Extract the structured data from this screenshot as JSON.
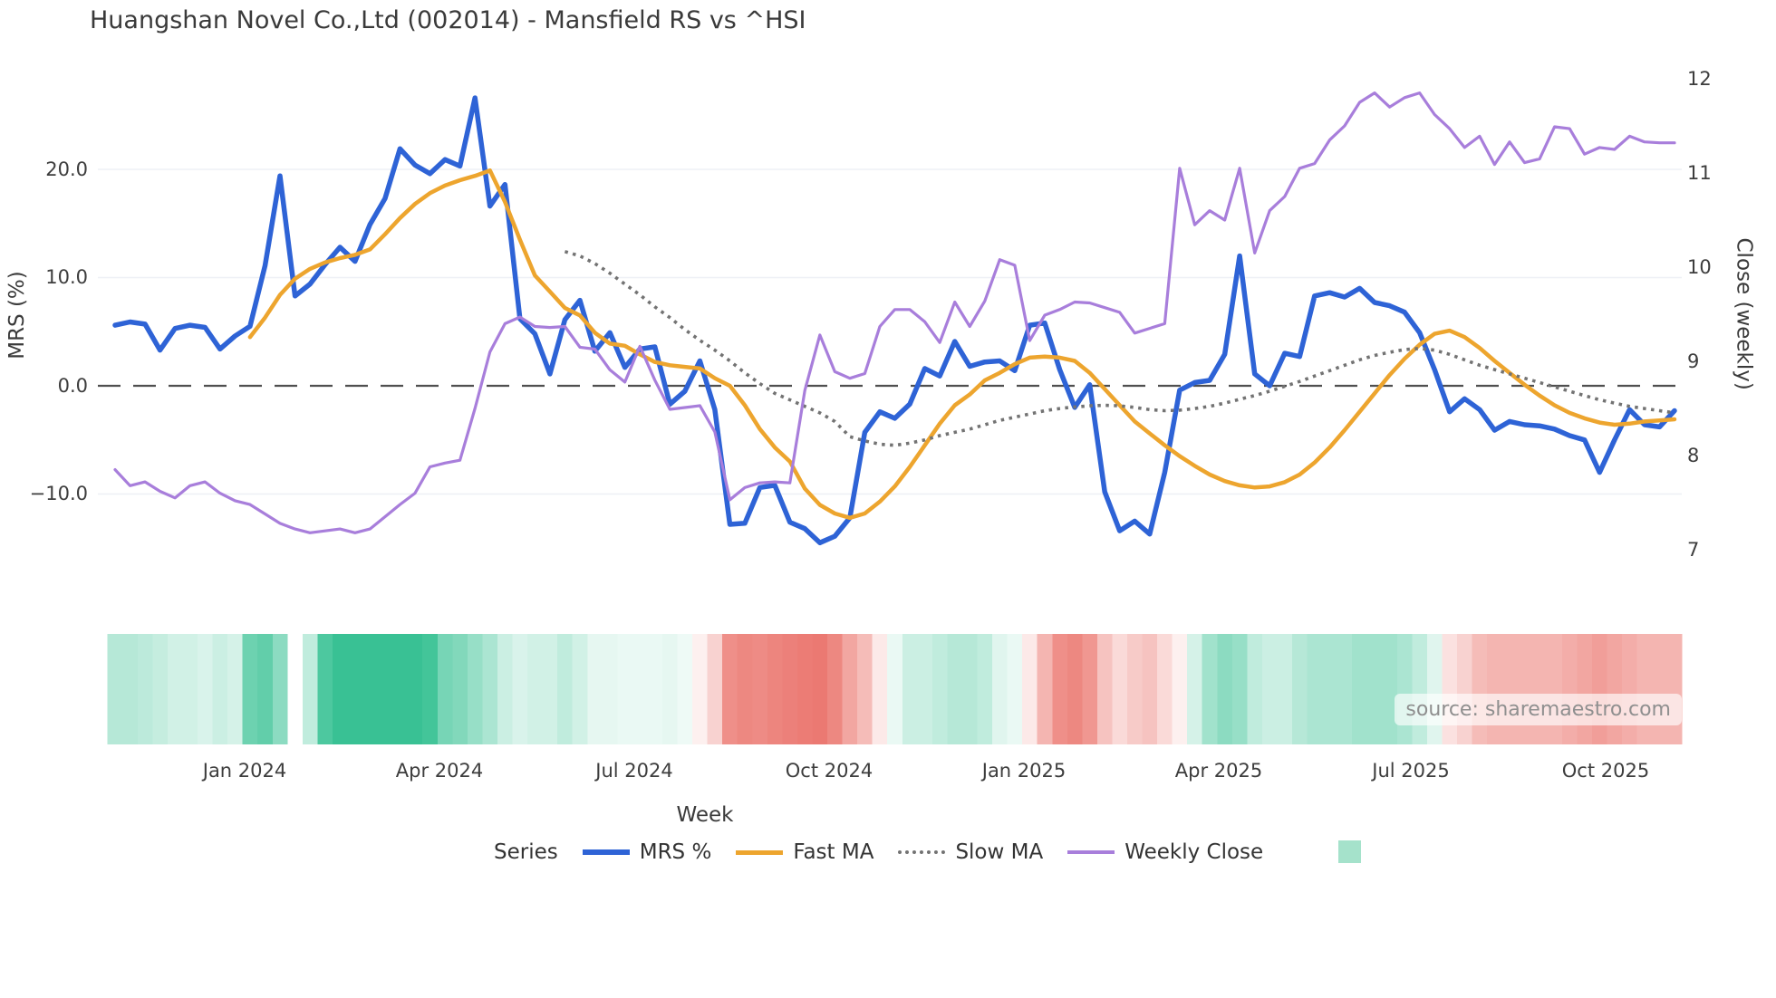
{
  "title": "Huangshan Novel Co.,Ltd (002014) - Mansfield RS vs ^HSI",
  "source": "source: sharemaestro.com",
  "axes": {
    "left": {
      "label": "MRS (%)",
      "ticks": [
        "20.0",
        "10.0",
        "0.0",
        "−10.0"
      ]
    },
    "right": {
      "label": "Close (weekly)",
      "ticks": [
        "12",
        "11",
        "10",
        "9",
        "8",
        "7"
      ]
    },
    "x": {
      "label": "Week",
      "ticks": [
        "Jan 2024",
        "Apr 2024",
        "Jul 2024",
        "Oct 2024",
        "Jan 2025",
        "Apr 2025",
        "Jul 2025",
        "Oct 2025"
      ]
    }
  },
  "legend": {
    "title": "Series",
    "items": [
      {
        "label": "MRS %",
        "color": "#2e63d6",
        "style": "solid",
        "thickness": 6
      },
      {
        "label": "Fast MA",
        "color": "#eda52e",
        "style": "solid",
        "thickness": 5
      },
      {
        "label": "Slow MA",
        "color": "#737373",
        "style": "dotted",
        "thickness": 4
      },
      {
        "label": "Weekly Close",
        "color": "#a87edb",
        "style": "solid",
        "thickness": 4
      },
      {
        "label": "",
        "color": "#a5e2cb",
        "style": "square",
        "thickness": 0
      }
    ]
  },
  "chart_data": {
    "type": "line",
    "title": "Huangshan Novel Co.,Ltd (002014) - Mansfield RS vs ^HSI",
    "xlabel": "Week",
    "x_tick_labels": [
      "Jan 2024",
      "Apr 2024",
      "Jul 2024",
      "Oct 2024",
      "Jan 2025",
      "Apr 2025",
      "Jul 2025",
      "Oct 2025"
    ],
    "left_axis": {
      "label": "MRS (%)",
      "tick_values": [
        20.0,
        10.0,
        0.0,
        -10.0
      ],
      "zero_line": true
    },
    "right_axis": {
      "label": "Close (weekly)",
      "tick_values": [
        12,
        11,
        10,
        9,
        8,
        7
      ]
    },
    "n_points": 105,
    "grid": true,
    "legend_position": "bottom",
    "series": [
      {
        "name": "MRS %",
        "axis": "left",
        "color": "#2e63d6",
        "width": 5.5,
        "dash": null,
        "values": [
          5.6,
          5.9,
          5.7,
          3.3,
          5.3,
          5.6,
          5.4,
          3.4,
          4.6,
          5.5,
          11.1,
          19.4,
          8.3,
          9.4,
          11.2,
          12.8,
          11.5,
          14.9,
          17.3,
          21.9,
          20.4,
          19.6,
          20.9,
          20.3,
          26.6,
          16.6,
          18.6,
          6.2,
          4.8,
          1.1,
          6.1,
          7.9,
          3.2,
          4.9,
          1.7,
          3.4,
          3.6,
          -1.7,
          -0.5,
          2.3,
          -2.2,
          -12.8,
          -12.7,
          -9.4,
          -9.2,
          -12.6,
          -13.2,
          -14.5,
          -13.9,
          -12.2,
          -4.3,
          -2.4,
          -3.0,
          -1.7,
          1.6,
          0.9,
          4.1,
          1.8,
          2.2,
          2.3,
          1.4,
          5.6,
          5.8,
          1.5,
          -2.0,
          0.1,
          -9.8,
          -13.4,
          -12.5,
          -13.7,
          -8.0,
          -0.4,
          0.3,
          0.5,
          2.9,
          12.0,
          1.1,
          0.0,
          3.0,
          2.7,
          8.3,
          8.6,
          8.2,
          9.0,
          7.7,
          7.4,
          6.8,
          4.9,
          1.5,
          -2.4,
          -1.2,
          -2.2,
          -4.1,
          -3.3,
          -3.6,
          -3.7,
          -4.0,
          -4.6,
          -5.0,
          -8.0,
          -5.0,
          -2.2,
          -3.6,
          -3.8,
          -2.3
        ]
      },
      {
        "name": "Fast MA",
        "axis": "left",
        "color": "#eda52e",
        "width": 4.5,
        "dash": null,
        "values": [
          null,
          null,
          null,
          null,
          null,
          null,
          null,
          null,
          null,
          4.5,
          6.3,
          8.4,
          9.9,
          10.8,
          11.4,
          11.8,
          12.1,
          12.6,
          14.0,
          15.5,
          16.8,
          17.8,
          18.5,
          19.0,
          19.4,
          19.9,
          17.0,
          13.5,
          10.2,
          8.7,
          7.2,
          6.5,
          4.9,
          3.9,
          3.7,
          2.9,
          2.2,
          1.9,
          1.75,
          1.6,
          0.7,
          0.0,
          -1.8,
          -4.0,
          -5.7,
          -7.0,
          -9.5,
          -11.0,
          -11.8,
          -12.2,
          -11.8,
          -10.7,
          -9.3,
          -7.5,
          -5.5,
          -3.5,
          -1.8,
          -0.8,
          0.5,
          1.2,
          2.0,
          2.6,
          2.7,
          2.6,
          2.3,
          1.2,
          -0.3,
          -1.8,
          -3.3,
          -4.4,
          -5.5,
          -6.5,
          -7.4,
          -8.2,
          -8.8,
          -9.2,
          -9.4,
          -9.3,
          -8.9,
          -8.2,
          -7.1,
          -5.7,
          -4.1,
          -2.4,
          -0.7,
          1.0,
          2.5,
          3.8,
          4.8,
          5.1,
          4.5,
          3.5,
          2.3,
          1.2,
          0.1,
          -0.9,
          -1.8,
          -2.5,
          -3.0,
          -3.4,
          -3.6,
          -3.5,
          -3.3,
          -3.2,
          -3.1
        ]
      },
      {
        "name": "Slow MA",
        "axis": "left",
        "color": "#737373",
        "width": 3.6,
        "dash": "3.5 5.5",
        "values": [
          null,
          null,
          null,
          null,
          null,
          null,
          null,
          null,
          null,
          null,
          null,
          null,
          null,
          null,
          null,
          null,
          null,
          null,
          null,
          null,
          null,
          null,
          null,
          null,
          null,
          null,
          null,
          null,
          null,
          null,
          12.4,
          12.0,
          11.3,
          10.4,
          9.4,
          8.4,
          7.3,
          6.3,
          5.2,
          4.2,
          3.3,
          2.3,
          1.2,
          0.2,
          -0.7,
          -1.3,
          -1.9,
          -2.5,
          -3.3,
          -4.7,
          -5.1,
          -5.4,
          -5.5,
          -5.3,
          -5.0,
          -4.6,
          -4.3,
          -4.0,
          -3.6,
          -3.2,
          -2.9,
          -2.6,
          -2.3,
          -2.1,
          -1.95,
          -1.85,
          -1.8,
          -1.85,
          -2.0,
          -2.2,
          -2.3,
          -2.25,
          -2.1,
          -1.9,
          -1.6,
          -1.25,
          -0.9,
          -0.5,
          -0.05,
          0.4,
          0.9,
          1.4,
          1.9,
          2.4,
          2.8,
          3.1,
          3.35,
          3.45,
          3.3,
          2.9,
          2.4,
          1.9,
          1.5,
          1.1,
          0.7,
          0.3,
          -0.1,
          -0.5,
          -0.9,
          -1.3,
          -1.6,
          -1.9,
          -2.1,
          -2.3,
          -2.5
        ]
      },
      {
        "name": "Weekly Close",
        "axis": "right",
        "color": "#a87edb",
        "width": 3.2,
        "dash": null,
        "values": [
          7.85,
          7.68,
          7.72,
          7.62,
          7.55,
          7.68,
          7.72,
          7.6,
          7.52,
          7.48,
          7.38,
          7.28,
          7.22,
          7.18,
          7.2,
          7.22,
          7.18,
          7.22,
          7.35,
          7.48,
          7.6,
          7.88,
          7.92,
          7.95,
          8.5,
          9.1,
          9.4,
          9.47,
          9.37,
          9.36,
          9.37,
          9.15,
          9.13,
          8.91,
          8.78,
          9.16,
          8.8,
          8.49,
          8.51,
          8.53,
          8.25,
          7.53,
          7.66,
          7.71,
          7.72,
          7.71,
          8.69,
          9.28,
          8.89,
          8.82,
          8.87,
          9.37,
          9.55,
          9.55,
          9.42,
          9.2,
          9.63,
          9.37,
          9.64,
          10.08,
          10.02,
          9.22,
          9.49,
          9.55,
          9.63,
          9.62,
          9.57,
          9.52,
          9.3,
          9.35,
          9.4,
          11.05,
          10.45,
          10.6,
          10.5,
          11.05,
          10.15,
          10.6,
          10.75,
          11.05,
          11.1,
          11.35,
          11.5,
          11.75,
          11.85,
          11.7,
          11.8,
          11.85,
          11.62,
          11.47,
          11.27,
          11.39,
          11.09,
          11.33,
          11.11,
          11.15,
          11.49,
          11.47,
          11.2,
          11.27,
          11.25,
          11.39,
          11.33,
          11.32,
          11.32
        ]
      }
    ],
    "heatmap": {
      "description": "weekly relative-strength color strip, green=strong red=weak",
      "colors": [
        "#b6e8d7",
        "#b6e8d7",
        "#bceadb",
        "#c5eddf",
        "#d1f1e6",
        "#d1f1e6",
        "#d9f3eb",
        "#cbefe3",
        "#d5f2e8",
        "#6dd2b0",
        "#62ceaa",
        "#8cdbc1",
        null,
        "#c0ecdd",
        "#4dc89f",
        "#39c194",
        "#39c194",
        "#39c194",
        "#39c194",
        "#39c194",
        "#39c194",
        "#43c599",
        "#77d5b6",
        "#82d8bb",
        "#97dfc7",
        "#abe5d2",
        "#cbefe3",
        "#d9f3eb",
        "#d1f1e6",
        "#d1f1e6",
        "#c0ecdd",
        "#d1f1e6",
        "#e6f7f1",
        "#e6f7f1",
        "#eaf9f4",
        "#eaf9f4",
        "#eaf9f4",
        "#e6f7f1",
        "#eefaf6",
        "#fdf0ef",
        "#f8d2d0",
        "#ef8f89",
        "#ed8881",
        "#ee8b85",
        "#ed857e",
        "#ec807a",
        "#ec7c75",
        "#eb7972",
        "#ed8881",
        "#f2a6a1",
        "#f5bcb8",
        "#fce9e8",
        "#eaf9f4",
        "#cbefe3",
        "#cbefe3",
        "#c0ecdd",
        "#b6e8d7",
        "#b6e8d7",
        "#c0ecdd",
        "#e0f5ee",
        "#eaf9f4",
        "#fce9e8",
        "#f4b5b1",
        "#ef8f89",
        "#ed8881",
        "#f09791",
        "#f6c3c0",
        "#fadad8",
        "#f7cbc8",
        "#f6c3c0",
        "#fadad8",
        "#fdf0ef",
        "#d5f2e8",
        "#a1e2cc",
        "#8cdbc1",
        "#97dfc7",
        "#c0ecdd",
        "#cbefe3",
        "#cbefe3",
        "#b6e8d7",
        "#abe5d2",
        "#abe5d2",
        "#abe5d2",
        "#a1e2cc",
        "#a1e2cc",
        "#a1e2cc",
        "#abe5d2",
        "#c0ecdd",
        "#e0f5ee",
        "#fbe1e0",
        "#f8d2d0",
        "#f5bcb8",
        "#f4b5b1",
        "#f4b5b1",
        "#f4b5b1",
        "#f4b5b1",
        "#f4b5b1",
        "#f3ada9",
        "#f2a6a1",
        "#f19e99",
        "#f2a6a1",
        "#f3ada9",
        "#f4b5b1",
        "#f4b5b1",
        "#f4b5b1"
      ]
    }
  }
}
